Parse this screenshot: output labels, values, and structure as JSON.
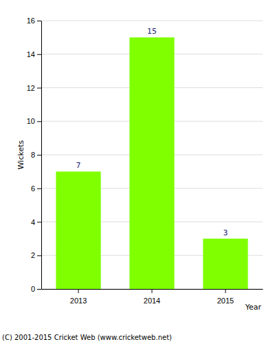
{
  "chart_data": {
    "type": "bar",
    "categories": [
      "2013",
      "2014",
      "2015"
    ],
    "values": [
      7,
      15,
      3
    ],
    "color": "#80ff00",
    "xlabel": "Year",
    "ylabel": "Wickets",
    "ylim": [
      0,
      16
    ],
    "yticks": [
      0,
      2,
      4,
      6,
      8,
      10,
      12,
      14,
      16
    ],
    "grid": true,
    "data_labels": true,
    "annotations": [
      "(C) 2001-2015 Cricket Web (www.cricketweb.net)"
    ]
  }
}
